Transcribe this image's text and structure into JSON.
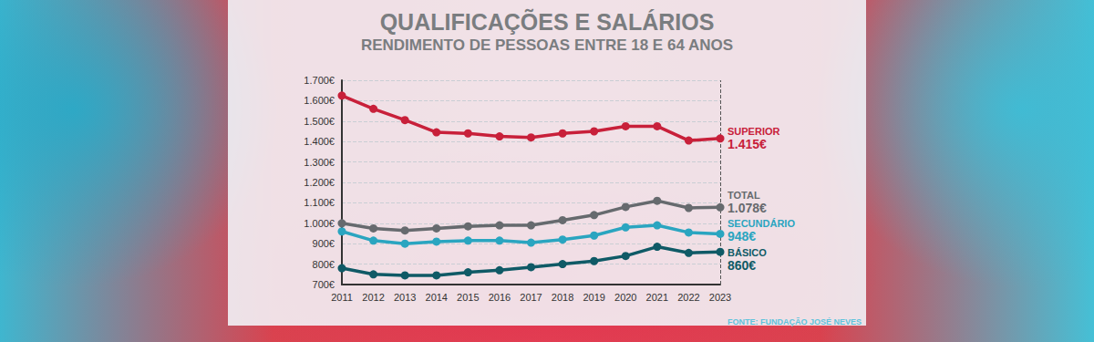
{
  "chart_data": {
    "type": "line",
    "title": "QUALIFICAÇÕES E SALÁRIOS",
    "subtitle": "RENDIMENTO DE PESSOAS ENTRE 18 E 64 ANOS",
    "source": "FONTE: FUNDAÇÃO JOSÉ NEVES",
    "categories": [
      "2011",
      "2012",
      "2013",
      "2014",
      "2015",
      "2016",
      "2017",
      "2018",
      "2019",
      "2020",
      "2021",
      "2022",
      "2023"
    ],
    "series": [
      {
        "name": "SUPERIOR",
        "color": "#c8203a",
        "values": [
          1625,
          1560,
          1505,
          1445,
          1440,
          1425,
          1420,
          1440,
          1450,
          1475,
          1475,
          1405,
          1415
        ],
        "value_labels": [
          null,
          null,
          null,
          null,
          null,
          null,
          null,
          null,
          null,
          null,
          null,
          null,
          "1.415€"
        ]
      },
      {
        "name": "TOTAL",
        "color": "#666a6e",
        "values": [
          1000,
          975,
          965,
          975,
          985,
          990,
          990,
          1015,
          1040,
          1080,
          1110,
          1075,
          1078
        ],
        "value_labels": [
          null,
          null,
          null,
          null,
          null,
          null,
          null,
          null,
          null,
          null,
          null,
          null,
          "1.078€"
        ]
      },
      {
        "name": "SECUNDÁRIO",
        "color": "#2aa5c0",
        "values": [
          960,
          915,
          900,
          910,
          915,
          915,
          905,
          920,
          940,
          980,
          990,
          955,
          948
        ],
        "value_labels": [
          null,
          null,
          null,
          null,
          null,
          null,
          null,
          null,
          null,
          null,
          null,
          null,
          "948€"
        ]
      },
      {
        "name": "BÁSICO",
        "color": "#0f5a66",
        "values": [
          780,
          750,
          745,
          745,
          760,
          770,
          785,
          800,
          815,
          840,
          885,
          855,
          860
        ],
        "value_labels": [
          null,
          null,
          null,
          null,
          null,
          null,
          null,
          null,
          null,
          null,
          null,
          null,
          "860€"
        ]
      }
    ],
    "ylim": [
      700,
      1700
    ],
    "yticks": [
      {
        "value": 700,
        "label": "700€"
      },
      {
        "value": 800,
        "label": "800€"
      },
      {
        "value": 900,
        "label": "900€"
      },
      {
        "value": 1000,
        "label": "1.000€"
      },
      {
        "value": 1100,
        "label": "1.100€"
      },
      {
        "value": 1200,
        "label": "1.200€"
      },
      {
        "value": 1300,
        "label": "1.300€"
      },
      {
        "value": 1400,
        "label": "1.400€"
      },
      {
        "value": 1500,
        "label": "1.500€"
      },
      {
        "value": 1600,
        "label": "1.600€"
      },
      {
        "value": 1700,
        "label": "1.700€"
      }
    ],
    "grid": true,
    "marker": "circle"
  }
}
